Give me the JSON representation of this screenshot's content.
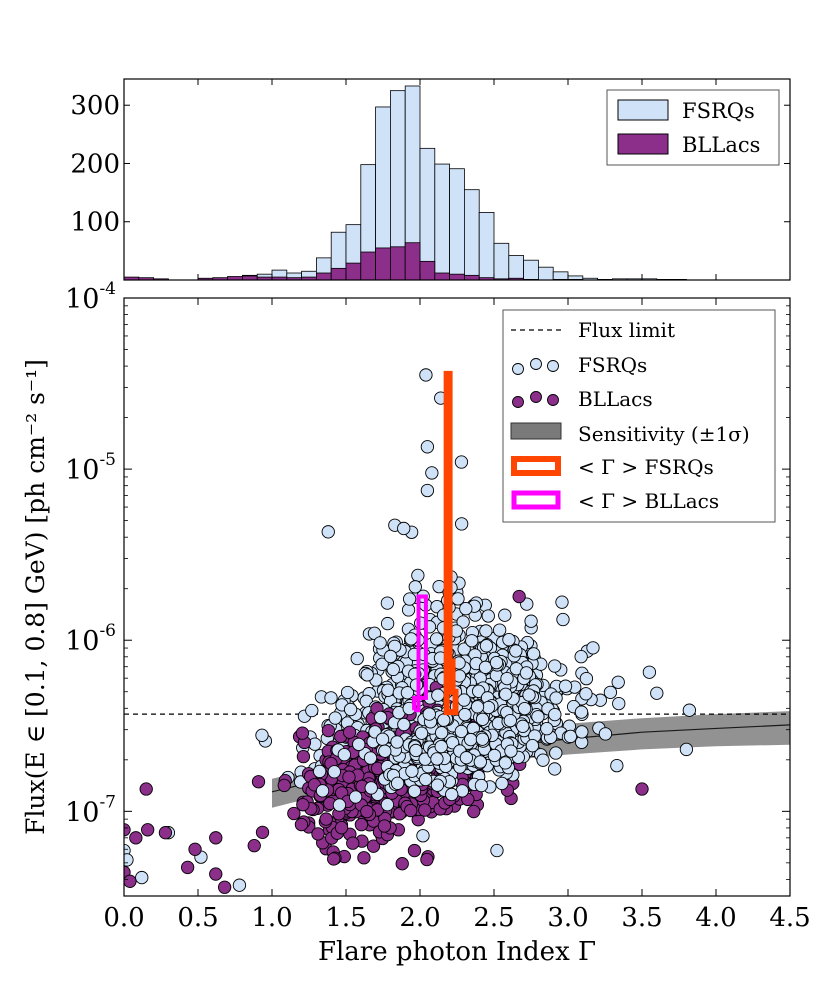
{
  "colors": {
    "fsrq": "#cfe2f8",
    "bllac": "#8b2f8b",
    "edge": "#000000",
    "mean_fsrq": "#ff4500",
    "mean_bllac": "#ff00ff",
    "band": "#7a7a7a",
    "band_line": "#1a1a1a"
  },
  "chart_data": [
    {
      "type": "bar",
      "panel": "top-histogram",
      "bin_edges": [
        0.0,
        0.1,
        0.2,
        0.3,
        0.4,
        0.5,
        0.6,
        0.7,
        0.8,
        0.9,
        1.0,
        1.1,
        1.2,
        1.3,
        1.4,
        1.5,
        1.6,
        1.7,
        1.8,
        1.9,
        2.0,
        2.1,
        2.2,
        2.3,
        2.4,
        2.5,
        2.6,
        2.7,
        2.8,
        2.9,
        3.0,
        3.1,
        3.2,
        3.3,
        3.4,
        3.5,
        3.6,
        3.7,
        3.8,
        3.9,
        4.0,
        4.1,
        4.2,
        4.3,
        4.4,
        4.5
      ],
      "series": [
        {
          "name": "FSRQs",
          "values": [
            2,
            1,
            1,
            0,
            0,
            2,
            3,
            5,
            8,
            10,
            17,
            12,
            15,
            38,
            82,
            95,
            198,
            297,
            325,
            333,
            226,
            199,
            191,
            155,
            116,
            63,
            42,
            34,
            22,
            14,
            7,
            3,
            1,
            2,
            2,
            2,
            1,
            1,
            0,
            0,
            0,
            0,
            0,
            0,
            0
          ]
        },
        {
          "name": "BLLacs",
          "values": [
            5,
            4,
            2,
            0,
            0,
            3,
            4,
            6,
            7,
            5,
            5,
            4,
            5,
            12,
            20,
            29,
            48,
            55,
            57,
            64,
            32,
            12,
            10,
            8,
            4,
            2,
            3,
            1,
            0,
            1,
            1,
            0,
            0,
            0,
            0,
            0,
            1,
            1,
            0,
            0,
            0,
            0,
            0,
            0,
            0
          ]
        }
      ],
      "xlim": [
        0,
        4.5
      ],
      "ylim": [
        0,
        345
      ],
      "yticks": [
        "100",
        "200",
        "300"
      ],
      "legend": [
        "FSRQs",
        "BLLacs"
      ],
      "legend_position": "top-right"
    },
    {
      "type": "scatter",
      "panel": "main",
      "xlabel": "Flare photon Index Γ",
      "ylabel": "Flux(E ∈ [0.1, 0.8] GeV) [ph cm⁻² s⁻¹]",
      "xlim": [
        0,
        4.5
      ],
      "ylim": [
        3.2e-08,
        0.0001
      ],
      "log_y": true,
      "xticks": [
        "0.0",
        "0.5",
        "1.0",
        "1.5",
        "2.0",
        "2.5",
        "3.0",
        "3.5",
        "4.0",
        "4.5"
      ],
      "yticks": [
        {
          "base": "10",
          "exp": "-7"
        },
        {
          "base": "10",
          "exp": "-6"
        },
        {
          "base": "10",
          "exp": "-5"
        },
        {
          "base": "10",
          "exp": "-4"
        }
      ],
      "flux_limit": 3.7e-07,
      "sensitivity": {
        "x": [
          1.0,
          1.5,
          2.0,
          2.5,
          3.0,
          3.5,
          4.0,
          4.5
        ],
        "center": [
          1.3e-07,
          1.65e-07,
          2e-07,
          2.35e-07,
          2.65e-07,
          2.9e-07,
          3.05e-07,
          3.2e-07
        ],
        "upper": [
          1.55e-07,
          1.95e-07,
          2.45e-07,
          2.9e-07,
          3.25e-07,
          3.5e-07,
          3.7e-07,
          3.85e-07
        ],
        "lower": [
          1.05e-07,
          1.35e-07,
          1.65e-07,
          1.95e-07,
          2.15e-07,
          2.3e-07,
          2.4e-07,
          2.45e-07
        ]
      },
      "mean_fsrq": {
        "x_center": [
          2.19,
          2.21,
          2.23,
          2.25
        ],
        "flux": [
          3.6e-05,
          7.5e-07,
          5e-07,
          3.8e-07
        ]
      },
      "mean_bllac": {
        "x_center": [
          1.97,
          1.99,
          2.01,
          2.03
        ],
        "flux": [
          3.9e-07,
          4.6e-07,
          9e-07,
          1.8e-06
        ]
      },
      "legend": [
        {
          "key": "flux_limit",
          "label": "Flux limit"
        },
        {
          "key": "fsrq",
          "label": "FSRQs"
        },
        {
          "key": "bllac",
          "label": "BLLacs"
        },
        {
          "key": "band",
          "label": "Sensitivity (±1σ)"
        },
        {
          "key": "mean_fsrq",
          "label": "< Γ > FSRQs"
        },
        {
          "key": "mean_bllac",
          "label": "< Γ > BLLacs"
        }
      ],
      "legend_position": "top-right",
      "highlighted_fsrq_points": [
        {
          "x": 2.04,
          "y": 3.55e-05
        },
        {
          "x": 2.14,
          "y": 2.6e-05
        },
        {
          "x": 2.05,
          "y": 1.35e-05
        },
        {
          "x": 2.28,
          "y": 1.1e-05
        },
        {
          "x": 2.08,
          "y": 9.5e-06
        },
        {
          "x": 2.05,
          "y": 7.5e-06
        },
        {
          "x": 1.83,
          "y": 4.7e-06
        },
        {
          "x": 1.89,
          "y": 4.5e-06
        },
        {
          "x": 1.38,
          "y": 4.3e-06
        },
        {
          "x": 3.55,
          "y": 6.5e-07
        },
        {
          "x": 3.6,
          "y": 4.9e-07
        },
        {
          "x": 3.82,
          "y": 3.9e-07
        },
        {
          "x": 3.8,
          "y": 2.3e-07
        },
        {
          "x": 3.33,
          "y": 1.85e-07
        },
        {
          "x": 2.02,
          "y": 7.2e-08
        },
        {
          "x": 2.52,
          "y": 5.9e-08
        },
        {
          "x": 0.0,
          "y": 5.9e-08
        },
        {
          "x": 0.02,
          "y": 5.2e-08
        },
        {
          "x": 0.12,
          "y": 4.1e-08
        },
        {
          "x": 0.3,
          "y": 7.5e-08
        },
        {
          "x": 0.52,
          "y": 5.4e-08
        },
        {
          "x": 0.78,
          "y": 3.7e-08
        }
      ],
      "highlighted_bllac_points": [
        {
          "x": 2.67,
          "y": 1.8e-06
        },
        {
          "x": 3.5,
          "y": 1.35e-07
        },
        {
          "x": 0.0,
          "y": 7.8e-08
        },
        {
          "x": 0.08,
          "y": 7e-08
        },
        {
          "x": 0.16,
          "y": 7.8e-08
        },
        {
          "x": 0.28,
          "y": 7.5e-08
        },
        {
          "x": 0.0,
          "y": 4.4e-08
        },
        {
          "x": 0.04,
          "y": 3.9e-08
        },
        {
          "x": 0.43,
          "y": 4.7e-08
        },
        {
          "x": 0.68,
          "y": 3.6e-08
        },
        {
          "x": 0.62,
          "y": 4.3e-08
        },
        {
          "x": 0.48,
          "y": 6e-08
        },
        {
          "x": 0.62,
          "y": 7e-08
        },
        {
          "x": 0.88,
          "y": 6.3e-08
        },
        {
          "x": 0.15,
          "y": 1.35e-07
        }
      ]
    }
  ]
}
